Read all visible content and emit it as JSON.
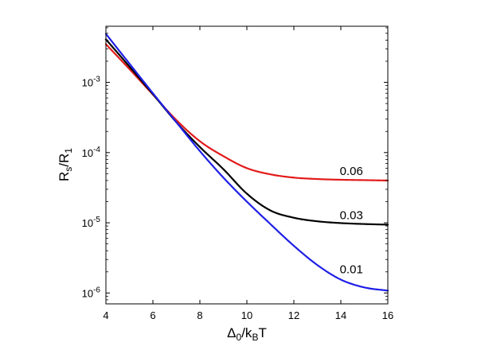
{
  "chart_data": {
    "type": "line",
    "xlabel": {
      "base": "Δ",
      "sub1": "0",
      "mid": "/k",
      "sub2": "B",
      "tail": "T"
    },
    "ylabel": {
      "base": "R",
      "sub1": "s",
      "mid": "/R",
      "sub2": "1"
    },
    "xlim": [
      4,
      16
    ],
    "ylim": [
      7e-07,
      0.0063
    ],
    "yscale": "log",
    "grid": false,
    "x_ticks": [
      4,
      6,
      8,
      10,
      12,
      14,
      16
    ],
    "y_ticks": [
      {
        "value": 1e-06,
        "mant": "10",
        "exp": "-6"
      },
      {
        "value": 1e-05,
        "mant": "10",
        "exp": "-5"
      },
      {
        "value": 0.0001,
        "mant": "10",
        "exp": "-4"
      },
      {
        "value": 0.001,
        "mant": "10",
        "exp": "-3"
      }
    ],
    "series": [
      {
        "name": "0.06",
        "color": "#e31a1a",
        "x": [
          4,
          5,
          6,
          7,
          8,
          9,
          10,
          11,
          12,
          13,
          14,
          15,
          16
        ],
        "y": [
          0.0035,
          0.00155,
          0.00067,
          0.00029,
          0.000145,
          8.9e-05,
          6e-05,
          4.9e-05,
          4.4e-05,
          4.2e-05,
          4.1e-05,
          4.05e-05,
          4e-05
        ],
        "label_at": [
          14.45,
          4.8e-05
        ]
      },
      {
        "name": "0.03",
        "color": "#000000",
        "x": [
          4,
          5,
          6,
          7,
          8,
          9,
          10,
          11,
          12,
          13,
          14,
          15,
          16
        ],
        "y": [
          0.0041,
          0.00168,
          0.00068,
          0.00027,
          0.00012,
          5.8e-05,
          2.6e-05,
          1.5e-05,
          1.18e-05,
          1.05e-05,
          9.9e-06,
          9.6e-06,
          9.4e-06
        ],
        "label_at": [
          14.45,
          1.12e-05
        ]
      },
      {
        "name": "0.01",
        "color": "#1f1fe6",
        "x": [
          4,
          5,
          6,
          7,
          8,
          9,
          10,
          11,
          12,
          13,
          14,
          15,
          16
        ],
        "y": [
          0.0049,
          0.00185,
          0.0007,
          0.00027,
          0.000105,
          4.4e-05,
          2e-05,
          9.6e-06,
          4.7e-06,
          2.5e-06,
          1.55e-06,
          1.2e-06,
          1.08e-06
        ],
        "label_at": [
          14.45,
          1.9e-06
        ]
      }
    ]
  }
}
